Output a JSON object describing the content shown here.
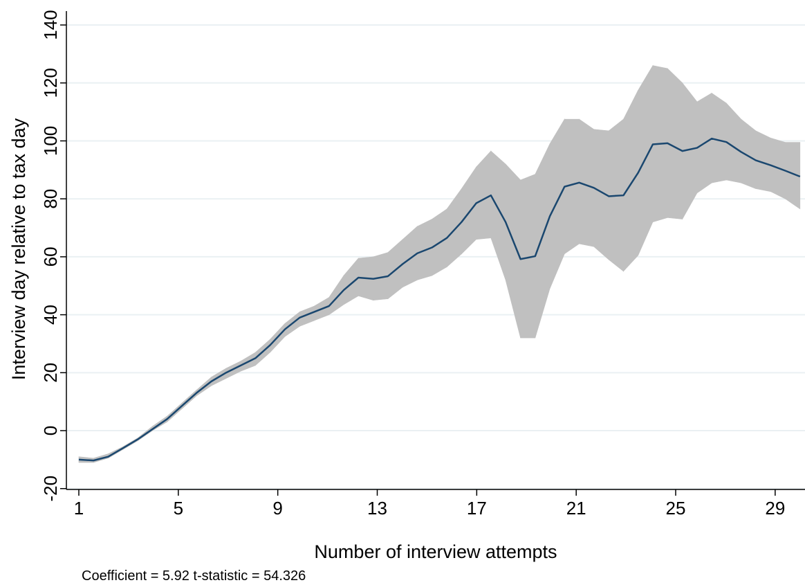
{
  "chart_data": {
    "type": "line",
    "x_label": "Number of interview attempts",
    "y_label": "Interview day relative to tax day",
    "note": "Coefficient = 5.92  t-statistic = 54.326",
    "x": [
      1,
      1.59,
      2.18,
      2.78,
      3.37,
      3.96,
      4.55,
      5.14,
      5.73,
      6.33,
      6.92,
      7.51,
      8.1,
      8.69,
      9.29,
      9.88,
      10.47,
      11.06,
      11.65,
      12.24,
      12.84,
      13.43,
      14.02,
      14.61,
      15.2,
      15.8,
      16.39,
      16.98,
      17.57,
      18.16,
      18.76,
      19.35,
      19.94,
      20.53,
      21.12,
      21.71,
      22.31,
      22.9,
      23.49,
      24.08,
      24.67,
      25.27,
      25.86,
      26.45,
      27.04,
      27.63,
      28.22,
      28.82,
      29.41,
      30
    ],
    "series": [
      {
        "color": "#1a476f",
        "values": [
          -10,
          -10.3,
          -9,
          -6,
          -3,
          0.5,
          4,
          8.5,
          13,
          17,
          20,
          22.5,
          25,
          29.5,
          35,
          39,
          41,
          43,
          48.5,
          52.8,
          52.4,
          53.3,
          57.5,
          61.2,
          63.2,
          66.5,
          72,
          78.5,
          81.2,
          72,
          59.2,
          60.2,
          74,
          84.2,
          85.6,
          83.8,
          80.9,
          81.2,
          89,
          98.8,
          99.2,
          96.5,
          97.6,
          100.8,
          99.6,
          96.2,
          93.3,
          91.6,
          89.7,
          87.7
        ]
      }
    ],
    "band": {
      "color": "#c0c0c0",
      "lower": [
        -11,
        -11,
        -9.5,
        -6.5,
        -3.5,
        0,
        3,
        7.5,
        12,
        15.5,
        18,
        20.5,
        22.5,
        27,
        32.5,
        36,
        38,
        40,
        43.5,
        46.5,
        45,
        45.5,
        49.5,
        52,
        53.5,
        56.5,
        61,
        66,
        66.5,
        52,
        32,
        32,
        49,
        61,
        64.5,
        63.5,
        59,
        55,
        60.5,
        72,
        73.5,
        73,
        82,
        85.5,
        86.5,
        85.5,
        83.5,
        82.5,
        80,
        76.5
      ],
      "upper": [
        -9,
        -9.5,
        -8,
        -5.5,
        -2.5,
        1.5,
        5,
        9.5,
        14,
        18.5,
        21.5,
        24,
        27,
        31.5,
        37,
        41,
        43,
        46,
        53.5,
        59.5,
        60,
        61.5,
        66,
        70.5,
        73,
        76.5,
        83.5,
        91,
        96.5,
        92,
        86.5,
        88.5,
        99,
        107.5,
        107.5,
        104,
        103.5,
        107.5,
        117.5,
        126,
        125,
        120,
        113.5,
        116.5,
        113,
        107.5,
        103.5,
        101,
        99.5,
        99.5
      ]
    },
    "xlim": [
      0.5,
      30.2
    ],
    "ylim": [
      -20.3,
      144.8
    ],
    "xticks": [
      1,
      5,
      9,
      13,
      17,
      21,
      25,
      29
    ],
    "yticks": [
      -20,
      0,
      20,
      40,
      60,
      80,
      100,
      120,
      140
    ],
    "grid": true
  }
}
